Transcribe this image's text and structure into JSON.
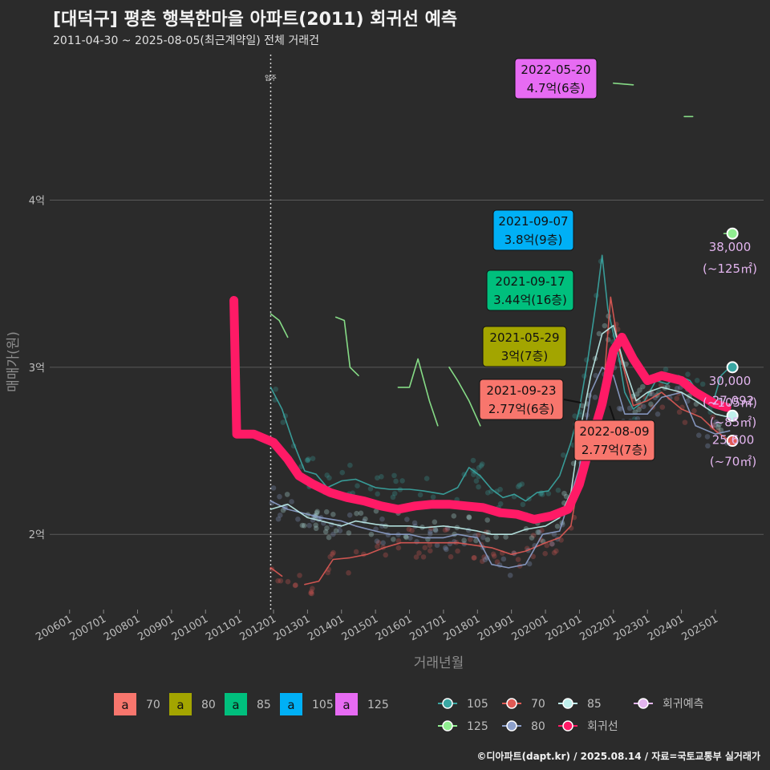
{
  "header": {
    "title": "[대덕구] 평촌 행복한마을 아파트(2011) 회귀선 예측",
    "subtitle": "2011-04-30 ~ 2025-08-05(최근계약일) 전체 거래건",
    "caption": "©디아파트(dapt.kr) / 2025.08.14 / 자료=국토교통부 실거래가"
  },
  "chart_data": {
    "type": "line",
    "xlabel": "거래년월",
    "ylabel": "매매가(원)",
    "x_range": [
      "2005-06",
      "2026-06"
    ],
    "ylim": [
      1.55,
      4.9
    ],
    "grid": true,
    "y_ticks": [
      {
        "v": 2,
        "label": "2억"
      },
      {
        "v": 3,
        "label": "3억"
      },
      {
        "v": 4,
        "label": "4억"
      }
    ],
    "x_ticks": [
      "200601",
      "200701",
      "200801",
      "200901",
      "201001",
      "201101",
      "201201",
      "201301",
      "201401",
      "201501",
      "201601",
      "201701",
      "201801",
      "201901",
      "202001",
      "202101",
      "202201",
      "202301",
      "202401",
      "202501"
    ],
    "move_in": {
      "date": "2011-12",
      "label": "입주"
    },
    "colors": {
      "s70": "#f8766d",
      "s80": "#a3a500",
      "s85": "#00bf7d",
      "s105": "#00b0f6",
      "s125": "#e76bf3",
      "l70": "#e05a55",
      "l80": "#8da0cb",
      "l85": "#bff0ec",
      "l105": "#3aa7a3",
      "l125": "#90ee90",
      "regression": "#ff1a66",
      "forecast": "#e3b5ef"
    },
    "series": [
      {
        "name": "105",
        "key": "l105",
        "points": [
          [
            "2011-12",
            2.88
          ],
          [
            "2012-04",
            2.75
          ],
          [
            "2012-08",
            2.55
          ],
          [
            "2012-12",
            2.38
          ],
          [
            "2013-04",
            2.36
          ],
          [
            "2013-08",
            2.28
          ],
          [
            "2014-01",
            2.32
          ],
          [
            "2014-06",
            2.33
          ],
          [
            "2015-01",
            2.28
          ],
          [
            "2015-06",
            2.27
          ],
          [
            "2016-01",
            2.27
          ],
          [
            "2016-06",
            2.26
          ],
          [
            "2017-01",
            2.24
          ],
          [
            "2017-06",
            2.28
          ],
          [
            "2017-10",
            2.4
          ],
          [
            "2018-02",
            2.35
          ],
          [
            "2018-06",
            2.27
          ],
          [
            "2018-10",
            2.22
          ],
          [
            "2019-02",
            2.24
          ],
          [
            "2019-06",
            2.2
          ],
          [
            "2019-10",
            2.25
          ],
          [
            "2020-02",
            2.26
          ],
          [
            "2020-06",
            2.35
          ],
          [
            "2020-10",
            2.55
          ],
          [
            "2021-01",
            2.75
          ],
          [
            "2021-04",
            3.05
          ],
          [
            "2021-07",
            3.4
          ],
          [
            "2021-09",
            3.67
          ],
          [
            "2021-11",
            3.35
          ],
          [
            "2022-01",
            3.2
          ],
          [
            "2022-03",
            3.05
          ],
          [
            "2022-05",
            2.85
          ],
          [
            "2022-08",
            2.75
          ],
          [
            "2022-12",
            2.8
          ],
          [
            "2023-04",
            2.92
          ],
          [
            "2023-08",
            2.9
          ],
          [
            "2023-12",
            2.95
          ],
          [
            "2024-04",
            2.92
          ],
          [
            "2024-08",
            2.82
          ],
          [
            "2024-12",
            2.78
          ],
          [
            "2025-03",
            2.95
          ],
          [
            "2025-06",
            3.0
          ]
        ]
      },
      {
        "name": "125",
        "key": "l125",
        "segments": [
          [
            [
              "2011-12",
              3.32
            ],
            [
              "2012-03",
              3.28
            ],
            [
              "2012-06",
              3.18
            ]
          ],
          [
            [
              "2013-11",
              3.3
            ],
            [
              "2014-02",
              3.28
            ],
            [
              "2014-04",
              3.0
            ],
            [
              "2014-07",
              2.95
            ]
          ],
          [
            [
              "2015-09",
              2.88
            ],
            [
              "2016-01",
              2.88
            ],
            [
              "2016-04",
              3.05
            ],
            [
              "2016-08",
              2.8
            ],
            [
              "2016-11",
              2.65
            ]
          ],
          [
            [
              "2017-03",
              3.0
            ],
            [
              "2017-06",
              2.92
            ],
            [
              "2017-10",
              2.8
            ],
            [
              "2018-02",
              2.65
            ]
          ],
          [
            [
              "2022-01",
              4.7
            ],
            [
              "2022-08",
              4.69
            ]
          ],
          [
            [
              "2024-02",
              4.5
            ],
            [
              "2024-05",
              4.5
            ]
          ],
          [
            [
              "2025-04",
              3.8
            ],
            [
              "2025-07",
              3.8
            ]
          ]
        ]
      },
      {
        "name": "70",
        "key": "l70",
        "segments": [
          [
            [
              "2011-12",
              1.8
            ],
            [
              "2012-04",
              1.75
            ]
          ],
          [
            [
              "2012-12",
              1.7
            ],
            [
              "2013-05",
              1.72
            ],
            [
              "2013-10",
              1.85
            ],
            [
              "2014-04",
              1.86
            ],
            [
              "2014-10",
              1.88
            ],
            [
              "2015-04",
              1.92
            ],
            [
              "2015-10",
              1.95
            ],
            [
              "2016-06",
              1.95
            ],
            [
              "2017-06",
              1.95
            ],
            [
              "2018-06",
              1.92
            ],
            [
              "2019-01",
              1.88
            ],
            [
              "2019-06",
              1.9
            ],
            [
              "2020-01",
              1.95
            ],
            [
              "2020-06",
              1.98
            ],
            [
              "2020-10",
              2.05
            ],
            [
              "2021-01",
              2.35
            ],
            [
              "2021-05",
              2.55
            ],
            [
              "2021-09",
              2.77
            ],
            [
              "2021-12",
              3.42
            ],
            [
              "2022-03",
              3.1
            ],
            [
              "2022-08",
              2.77
            ],
            [
              "2023-01",
              2.8
            ],
            [
              "2023-06",
              2.85
            ],
            [
              "2024-01",
              2.75
            ],
            [
              "2024-08",
              2.7
            ],
            [
              "2025-01",
              2.62
            ],
            [
              "2025-06",
              2.56
            ]
          ]
        ]
      },
      {
        "name": "80",
        "key": "l80",
        "points": [
          [
            "2011-12",
            2.2
          ],
          [
            "2012-06",
            2.15
          ],
          [
            "2013-01",
            2.12
          ],
          [
            "2013-06",
            2.1
          ],
          [
            "2014-01",
            2.08
          ],
          [
            "2014-06",
            2.05
          ],
          [
            "2015-01",
            2.02
          ],
          [
            "2015-06",
            2.0
          ],
          [
            "2016-01",
            2.0
          ],
          [
            "2016-06",
            1.98
          ],
          [
            "2017-01",
            1.98
          ],
          [
            "2017-06",
            2.0
          ],
          [
            "2018-01",
            1.98
          ],
          [
            "2018-06",
            1.82
          ],
          [
            "2018-12",
            1.8
          ],
          [
            "2019-06",
            1.82
          ],
          [
            "2019-12",
            2.0
          ],
          [
            "2020-06",
            2.02
          ],
          [
            "2021-01",
            2.4
          ],
          [
            "2021-05",
            2.85
          ],
          [
            "2021-09",
            3.0
          ],
          [
            "2022-01",
            2.95
          ],
          [
            "2022-05",
            2.72
          ],
          [
            "2023-01",
            2.72
          ],
          [
            "2023-06",
            2.82
          ],
          [
            "2024-01",
            2.85
          ],
          [
            "2024-06",
            2.65
          ],
          [
            "2025-01",
            2.6
          ],
          [
            "2025-06",
            2.62
          ]
        ]
      },
      {
        "name": "85",
        "key": "l85",
        "points": [
          [
            "2011-12",
            2.15
          ],
          [
            "2012-06",
            2.18
          ],
          [
            "2013-01",
            2.1
          ],
          [
            "2013-06",
            2.08
          ],
          [
            "2014-01",
            2.05
          ],
          [
            "2014-06",
            2.08
          ],
          [
            "2015-01",
            2.06
          ],
          [
            "2015-06",
            2.05
          ],
          [
            "2016-01",
            2.05
          ],
          [
            "2016-06",
            2.04
          ],
          [
            "2017-01",
            2.05
          ],
          [
            "2017-06",
            2.04
          ],
          [
            "2018-01",
            2.02
          ],
          [
            "2018-06",
            2.0
          ],
          [
            "2019-01",
            2.0
          ],
          [
            "2019-06",
            2.03
          ],
          [
            "2020-01",
            2.05
          ],
          [
            "2020-06",
            2.1
          ],
          [
            "2020-10",
            2.25
          ],
          [
            "2021-01",
            2.6
          ],
          [
            "2021-05",
            2.95
          ],
          [
            "2021-09",
            3.2
          ],
          [
            "2022-01",
            3.25
          ],
          [
            "2022-05",
            3.0
          ],
          [
            "2022-09",
            2.8
          ],
          [
            "2023-01",
            2.85
          ],
          [
            "2023-06",
            2.88
          ],
          [
            "2024-01",
            2.85
          ],
          [
            "2024-06",
            2.8
          ],
          [
            "2025-01",
            2.72
          ],
          [
            "2025-06",
            2.7
          ]
        ]
      },
      {
        "name": "회귀선",
        "key": "regression",
        "points": [
          [
            "2010-11",
            3.4
          ],
          [
            "2010-12",
            2.6
          ],
          [
            "2011-06",
            2.6
          ],
          [
            "2012-01",
            2.55
          ],
          [
            "2012-06",
            2.45
          ],
          [
            "2012-10",
            2.35
          ],
          [
            "2013-03",
            2.3
          ],
          [
            "2013-09",
            2.25
          ],
          [
            "2014-03",
            2.22
          ],
          [
            "2014-09",
            2.2
          ],
          [
            "2015-03",
            2.17
          ],
          [
            "2015-09",
            2.15
          ],
          [
            "2016-03",
            2.17
          ],
          [
            "2016-09",
            2.18
          ],
          [
            "2017-03",
            2.18
          ],
          [
            "2017-09",
            2.17
          ],
          [
            "2018-03",
            2.16
          ],
          [
            "2018-09",
            2.13
          ],
          [
            "2019-03",
            2.12
          ],
          [
            "2019-09",
            2.09
          ],
          [
            "2020-03",
            2.11
          ],
          [
            "2020-09",
            2.15
          ],
          [
            "2021-01",
            2.3
          ],
          [
            "2021-05",
            2.55
          ],
          [
            "2021-09",
            2.78
          ],
          [
            "2022-01",
            3.1
          ],
          [
            "2022-04",
            3.18
          ],
          [
            "2022-08",
            3.05
          ],
          [
            "2023-01",
            2.92
          ],
          [
            "2023-06",
            2.95
          ],
          [
            "2024-01",
            2.92
          ],
          [
            "2024-06",
            2.85
          ],
          [
            "2025-01",
            2.78
          ],
          [
            "2025-05",
            2.76
          ]
        ]
      }
    ],
    "forecast_points": [
      {
        "size": "125",
        "value": 3.8,
        "date": "2025-07",
        "label": "38,000",
        "sub": "(~125㎡)"
      },
      {
        "size": "105",
        "value": 3.0,
        "date": "2025-07",
        "label": "30,000",
        "sub": "(~105㎡)"
      },
      {
        "size": "85",
        "value": 2.71,
        "date": "2025-07",
        "label": "27,092",
        "sub": "(~85㎡)"
      },
      {
        "size": "70",
        "value": 2.56,
        "date": "2025-07",
        "label": "25,600",
        "sub": "(~70㎡)"
      }
    ],
    "annotations": [
      {
        "size": "125",
        "date": "2022-05-20",
        "price": "4.7억(6층)",
        "value": 4.7
      },
      {
        "size": "105",
        "date": "2021-09-07",
        "price": "3.8억(9층)",
        "value": 3.8
      },
      {
        "size": "85",
        "date": "2021-09-17",
        "price": "3.44억(16층)",
        "value": 3.44
      },
      {
        "size": "80",
        "date": "2021-05-29",
        "price": "3억(7층)",
        "value": 3.0
      },
      {
        "size": "70",
        "date": "2021-09-23",
        "price": "2.77억(6층)",
        "value": 2.77
      },
      {
        "size": "70",
        "date": "2022-08-09",
        "price": "2.77억(7층)",
        "value": 2.77
      }
    ],
    "legend_fill": [
      {
        "label": "70",
        "key": "s70"
      },
      {
        "label": "80",
        "key": "s80"
      },
      {
        "label": "85",
        "key": "s85"
      },
      {
        "label": "105",
        "key": "s105"
      },
      {
        "label": "125",
        "key": "s125"
      }
    ],
    "legend_fill_glyph": "a",
    "legend_lines": [
      {
        "label": "105",
        "key": "l105"
      },
      {
        "label": "70",
        "key": "l70"
      },
      {
        "label": "85",
        "key": "l85"
      },
      {
        "label": "회귀예측",
        "key": "forecast"
      },
      {
        "label": "125",
        "key": "l125"
      },
      {
        "label": "80",
        "key": "l80"
      },
      {
        "label": "회귀선",
        "key": "regression"
      }
    ]
  }
}
